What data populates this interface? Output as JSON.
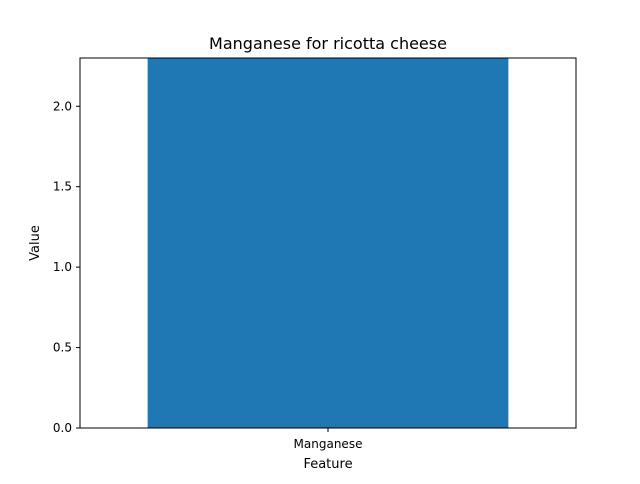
{
  "chart_data": {
    "type": "bar",
    "title": "Manganese for ricotta cheese",
    "xlabel": "Feature",
    "ylabel": "Value",
    "categories": [
      "Manganese"
    ],
    "values": [
      2.3
    ],
    "ylim": [
      0,
      2.3
    ],
    "yticks": [
      0.0,
      0.5,
      1.0,
      1.5,
      2.0
    ],
    "grid": false,
    "bar_color": "#1f77b4"
  }
}
